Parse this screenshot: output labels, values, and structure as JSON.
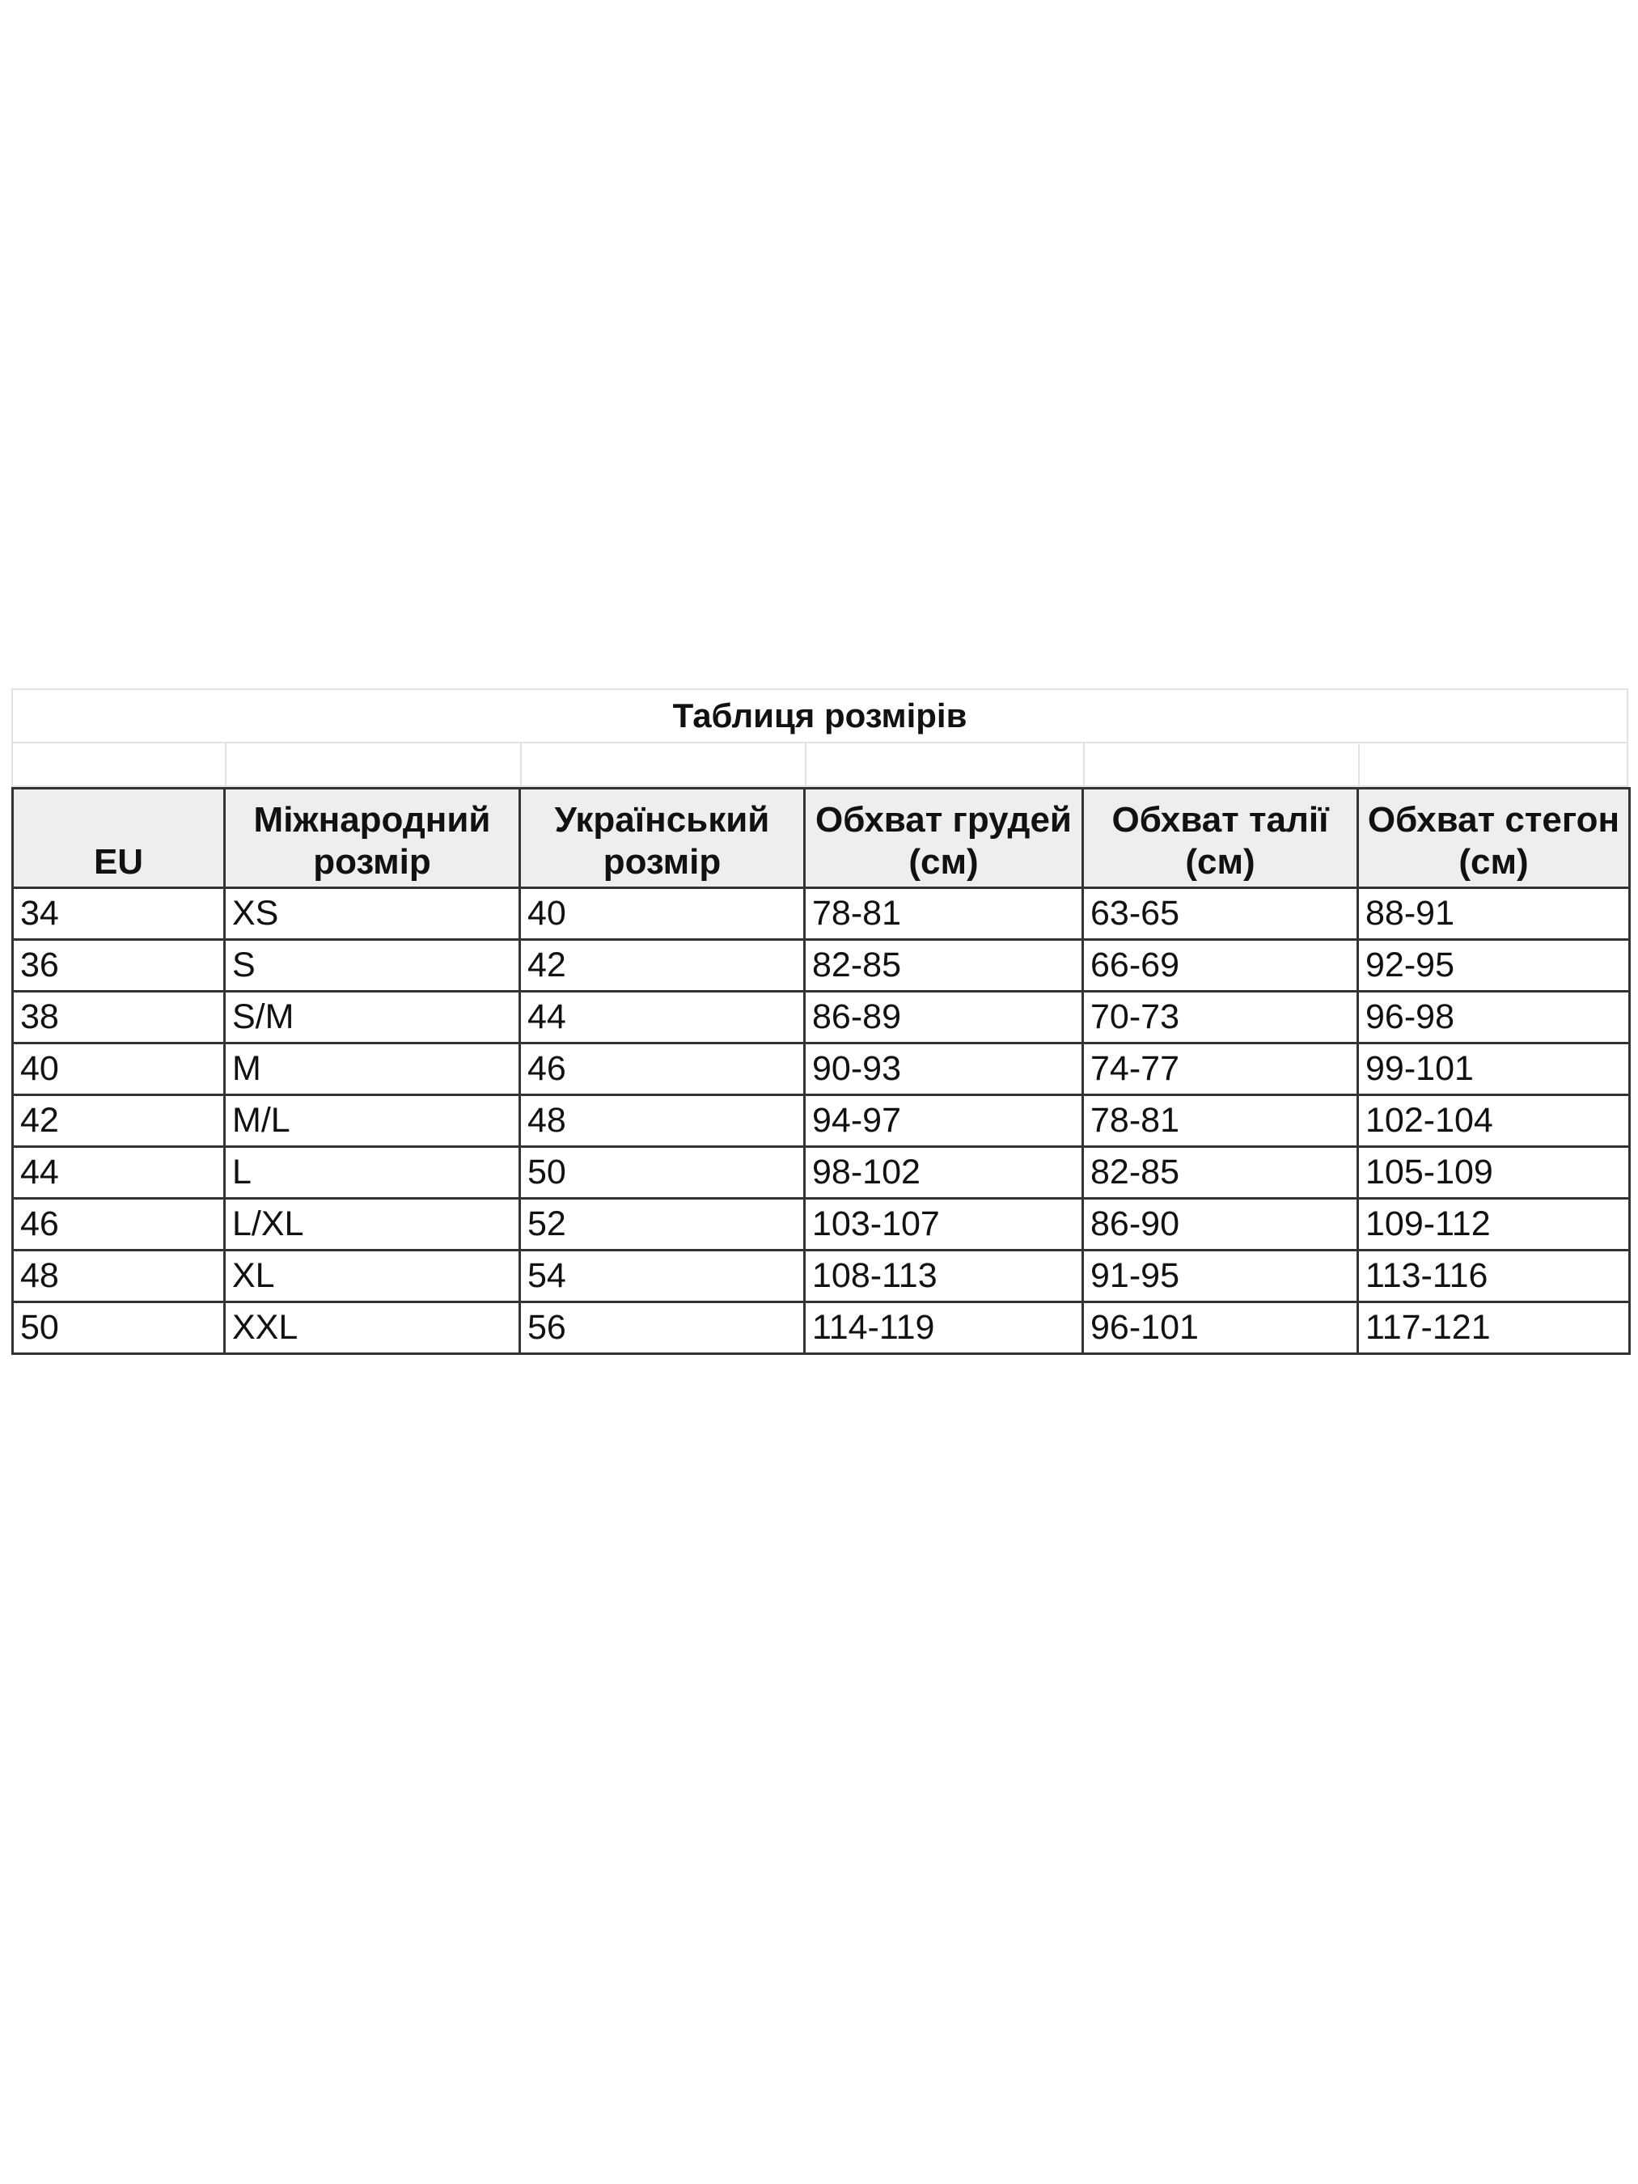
{
  "title": "Таблиця розмірів",
  "columns": [
    "EU",
    "Міжнародний розмір",
    "Український розмір",
    "Обхват грудей (см)",
    "Обхват талії (см)",
    "Обхват стегон (см)"
  ],
  "rows": [
    [
      "34",
      "XS",
      "40",
      "78-81",
      "63-65",
      "88-91"
    ],
    [
      "36",
      "S",
      "42",
      "82-85",
      "66-69",
      "92-95"
    ],
    [
      "38",
      "S/M",
      "44",
      "86-89",
      "70-73",
      "96-98"
    ],
    [
      "40",
      "M",
      "46",
      "90-93",
      "74-77",
      "99-101"
    ],
    [
      "42",
      "M/L",
      "48",
      "94-97",
      "78-81",
      "102-104"
    ],
    [
      "44",
      "L",
      "50",
      "98-102",
      "82-85",
      "105-109"
    ],
    [
      "46",
      "L/XL",
      "52",
      "103-107",
      "86-90",
      "109-112"
    ],
    [
      "48",
      "XL",
      "54",
      "108-113",
      "91-95",
      "113-116"
    ],
    [
      "50",
      "XXL",
      "56",
      "114-119",
      "96-101",
      "117-121"
    ]
  ]
}
